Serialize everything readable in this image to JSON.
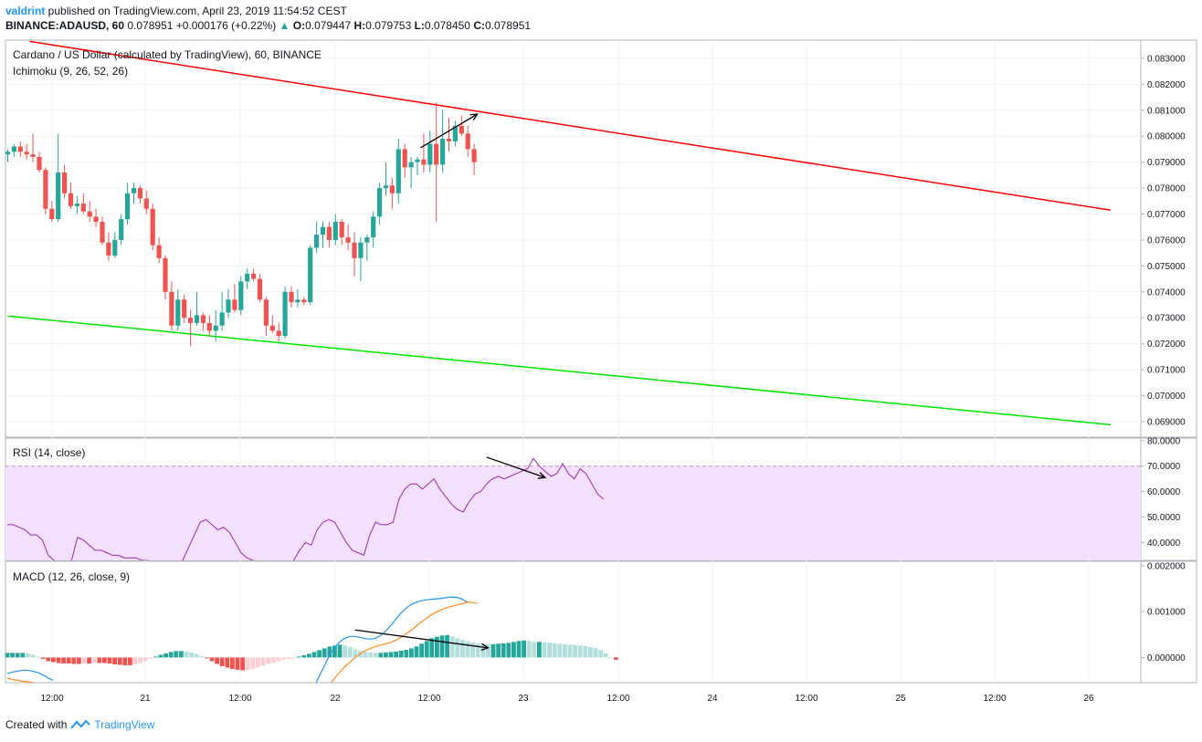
{
  "header": {
    "author": "valdrint",
    "published_text": " published on TradingView.com, April 23, 2019 11:54:52 CEST",
    "symbol_interval": "BINANCE:ADAUSD, 60",
    "last": "0.078951",
    "change": "+0.000176 (+0.22%)",
    "o_label": "O:",
    "o_value": "0.079447",
    "h_label": "H:",
    "h_value": "0.079753",
    "l_label": "L:",
    "l_value": "0.078450",
    "c_label": "C:",
    "c_value": "0.078951"
  },
  "legend": {
    "main": "Cardano / US Dollar (calculated by TradingView), 60, BINANCE",
    "ichimoku": "Ichimoku (9, 26, 52, 26)",
    "rsi": "RSI (14, close)",
    "macd": "MACD (12, 26, close, 9)"
  },
  "footer": {
    "created_with": "Created with",
    "brand": "TradingView"
  },
  "colors": {
    "up": "#26a69a",
    "down": "#ef5350",
    "resistance": "#ff0000",
    "support": "#00e600",
    "rsi_line": "#9c27b0",
    "rsi_band": "#f3e0fc",
    "macd_line": "#2196f3",
    "signal_line": "#ff8c1a",
    "hist_up_strong": "#26a69a",
    "hist_up_weak": "#b2dfdb",
    "hist_down_strong": "#ef5350",
    "hist_down_weak": "#ffcdd2"
  },
  "chart_data": [
    {
      "type": "candlestick",
      "title": "Cardano / US Dollar (calculated by TradingView), 60, BINANCE",
      "ylim": [
        0.0684,
        0.0837
      ],
      "y_ticks": [
        "0.083000",
        "0.082000",
        "0.081000",
        "0.080000",
        "0.079000",
        "0.078000",
        "0.077000",
        "0.076000",
        "0.075000",
        "0.074000",
        "0.073000",
        "0.072000",
        "0.071000",
        "0.070000",
        "0.069000"
      ],
      "x_ticks": [
        "12:00",
        "21",
        "12:00",
        "22",
        "12:00",
        "23",
        "12:00",
        "24",
        "12:00",
        "25",
        "12:00",
        "26"
      ],
      "candles": [
        {
          "o": 0.0793,
          "h": 0.0795,
          "l": 0.079,
          "c": 0.0794
        },
        {
          "o": 0.0794,
          "h": 0.0797,
          "l": 0.0792,
          "c": 0.0796
        },
        {
          "o": 0.0796,
          "h": 0.0798,
          "l": 0.0792,
          "c": 0.0794
        },
        {
          "o": 0.0794,
          "h": 0.0797,
          "l": 0.0791,
          "c": 0.0793
        },
        {
          "o": 0.0793,
          "h": 0.0801,
          "l": 0.079,
          "c": 0.0792
        },
        {
          "o": 0.0792,
          "h": 0.0794,
          "l": 0.0786,
          "c": 0.0787
        },
        {
          "o": 0.0787,
          "h": 0.0788,
          "l": 0.077,
          "c": 0.0772
        },
        {
          "o": 0.0772,
          "h": 0.0775,
          "l": 0.0767,
          "c": 0.0768
        },
        {
          "o": 0.0768,
          "h": 0.0801,
          "l": 0.0767,
          "c": 0.0786
        },
        {
          "o": 0.0786,
          "h": 0.0789,
          "l": 0.0776,
          "c": 0.0778
        },
        {
          "o": 0.0778,
          "h": 0.0782,
          "l": 0.0772,
          "c": 0.0773
        },
        {
          "o": 0.0773,
          "h": 0.0777,
          "l": 0.077,
          "c": 0.0774
        },
        {
          "o": 0.0774,
          "h": 0.0778,
          "l": 0.077,
          "c": 0.0771
        },
        {
          "o": 0.0771,
          "h": 0.0775,
          "l": 0.0767,
          "c": 0.0769
        },
        {
          "o": 0.0769,
          "h": 0.0772,
          "l": 0.0765,
          "c": 0.0767
        },
        {
          "o": 0.0767,
          "h": 0.0769,
          "l": 0.0758,
          "c": 0.0759
        },
        {
          "o": 0.0759,
          "h": 0.0763,
          "l": 0.0752,
          "c": 0.0754
        },
        {
          "o": 0.0754,
          "h": 0.0763,
          "l": 0.0753,
          "c": 0.076
        },
        {
          "o": 0.076,
          "h": 0.077,
          "l": 0.0758,
          "c": 0.0768
        },
        {
          "o": 0.0768,
          "h": 0.0782,
          "l": 0.0766,
          "c": 0.0778
        },
        {
          "o": 0.0778,
          "h": 0.0782,
          "l": 0.0774,
          "c": 0.078
        },
        {
          "o": 0.078,
          "h": 0.0781,
          "l": 0.0774,
          "c": 0.0776
        },
        {
          "o": 0.0776,
          "h": 0.0779,
          "l": 0.077,
          "c": 0.0772
        },
        {
          "o": 0.0772,
          "h": 0.0774,
          "l": 0.0756,
          "c": 0.0758
        },
        {
          "o": 0.0758,
          "h": 0.0761,
          "l": 0.0751,
          "c": 0.0753
        },
        {
          "o": 0.0753,
          "h": 0.0754,
          "l": 0.0737,
          "c": 0.074
        },
        {
          "o": 0.074,
          "h": 0.0744,
          "l": 0.0725,
          "c": 0.0727
        },
        {
          "o": 0.0727,
          "h": 0.0741,
          "l": 0.0725,
          "c": 0.0737
        },
        {
          "o": 0.0737,
          "h": 0.0739,
          "l": 0.0728,
          "c": 0.073
        },
        {
          "o": 0.073,
          "h": 0.0733,
          "l": 0.0719,
          "c": 0.0728
        },
        {
          "o": 0.0728,
          "h": 0.074,
          "l": 0.0727,
          "c": 0.0731
        },
        {
          "o": 0.0731,
          "h": 0.0732,
          "l": 0.0725,
          "c": 0.0728
        },
        {
          "o": 0.0728,
          "h": 0.0731,
          "l": 0.0723,
          "c": 0.0725
        },
        {
          "o": 0.0725,
          "h": 0.0733,
          "l": 0.0721,
          "c": 0.0727
        },
        {
          "o": 0.0727,
          "h": 0.074,
          "l": 0.0725,
          "c": 0.0732
        },
        {
          "o": 0.0732,
          "h": 0.0741,
          "l": 0.073,
          "c": 0.0737
        },
        {
          "o": 0.0737,
          "h": 0.0743,
          "l": 0.0732,
          "c": 0.0733
        },
        {
          "o": 0.0733,
          "h": 0.0746,
          "l": 0.0731,
          "c": 0.0744
        },
        {
          "o": 0.0744,
          "h": 0.0749,
          "l": 0.0741,
          "c": 0.0747
        },
        {
          "o": 0.0747,
          "h": 0.0749,
          "l": 0.0744,
          "c": 0.0745
        },
        {
          "o": 0.0745,
          "h": 0.0747,
          "l": 0.0736,
          "c": 0.0737
        },
        {
          "o": 0.0737,
          "h": 0.0738,
          "l": 0.0723,
          "c": 0.0727
        },
        {
          "o": 0.0727,
          "h": 0.0731,
          "l": 0.0724,
          "c": 0.0725
        },
        {
          "o": 0.0725,
          "h": 0.0728,
          "l": 0.0721,
          "c": 0.0723
        },
        {
          "o": 0.0723,
          "h": 0.0742,
          "l": 0.0722,
          "c": 0.074
        },
        {
          "o": 0.074,
          "h": 0.0742,
          "l": 0.0734,
          "c": 0.0736
        },
        {
          "o": 0.0736,
          "h": 0.0741,
          "l": 0.0734,
          "c": 0.0737
        },
        {
          "o": 0.0737,
          "h": 0.0738,
          "l": 0.0735,
          "c": 0.0736
        },
        {
          "o": 0.0736,
          "h": 0.0758,
          "l": 0.0735,
          "c": 0.0757
        },
        {
          "o": 0.0757,
          "h": 0.0767,
          "l": 0.0755,
          "c": 0.0762
        },
        {
          "o": 0.0762,
          "h": 0.0767,
          "l": 0.0757,
          "c": 0.0765
        },
        {
          "o": 0.0765,
          "h": 0.0767,
          "l": 0.0757,
          "c": 0.076
        },
        {
          "o": 0.076,
          "h": 0.077,
          "l": 0.0758,
          "c": 0.0767
        },
        {
          "o": 0.0767,
          "h": 0.0768,
          "l": 0.0758,
          "c": 0.0761
        },
        {
          "o": 0.0761,
          "h": 0.0766,
          "l": 0.0756,
          "c": 0.0759
        },
        {
          "o": 0.0759,
          "h": 0.0763,
          "l": 0.0746,
          "c": 0.0753
        },
        {
          "o": 0.0753,
          "h": 0.0761,
          "l": 0.0744,
          "c": 0.0759
        },
        {
          "o": 0.0759,
          "h": 0.0762,
          "l": 0.0752,
          "c": 0.0761
        },
        {
          "o": 0.0761,
          "h": 0.0771,
          "l": 0.0757,
          "c": 0.0769
        },
        {
          "o": 0.0769,
          "h": 0.0782,
          "l": 0.0766,
          "c": 0.078
        },
        {
          "o": 0.078,
          "h": 0.079,
          "l": 0.0777,
          "c": 0.0781
        },
        {
          "o": 0.0781,
          "h": 0.0784,
          "l": 0.0772,
          "c": 0.0778
        },
        {
          "o": 0.0778,
          "h": 0.0799,
          "l": 0.0774,
          "c": 0.0795
        },
        {
          "o": 0.0795,
          "h": 0.0797,
          "l": 0.0784,
          "c": 0.0788
        },
        {
          "o": 0.0788,
          "h": 0.0792,
          "l": 0.078,
          "c": 0.079
        },
        {
          "o": 0.079,
          "h": 0.0792,
          "l": 0.0785,
          "c": 0.0791
        },
        {
          "o": 0.0791,
          "h": 0.0801,
          "l": 0.0786,
          "c": 0.0789
        },
        {
          "o": 0.0789,
          "h": 0.0802,
          "l": 0.0786,
          "c": 0.0797
        },
        {
          "o": 0.0797,
          "h": 0.0813,
          "l": 0.0767,
          "c": 0.0789
        },
        {
          "o": 0.0789,
          "h": 0.081,
          "l": 0.0786,
          "c": 0.0799
        },
        {
          "o": 0.0799,
          "h": 0.0807,
          "l": 0.0794,
          "c": 0.0798
        },
        {
          "o": 0.0798,
          "h": 0.0806,
          "l": 0.0796,
          "c": 0.0804
        },
        {
          "o": 0.0804,
          "h": 0.0808,
          "l": 0.08,
          "c": 0.0801
        },
        {
          "o": 0.0801,
          "h": 0.0804,
          "l": 0.0792,
          "c": 0.0795
        },
        {
          "o": 0.0795,
          "h": 0.0797,
          "l": 0.0785,
          "c": 0.079
        }
      ],
      "trendlines": [
        {
          "name": "resistance",
          "from": {
            "bar": 3.5,
            "price": 0.08365
          },
          "to": {
            "bar": 175,
            "price": 0.07715
          }
        },
        {
          "name": "support",
          "from": {
            "bar": 0,
            "price": 0.07307
          },
          "to": {
            "bar": 175,
            "price": 0.06888
          }
        }
      ],
      "arrows": [
        {
          "from": {
            "bar": 65.5,
            "price": 0.07955
          },
          "to": {
            "bar": 74.5,
            "price": 0.08085
          }
        }
      ]
    },
    {
      "type": "line",
      "title": "RSI (14, close)",
      "ylim": [
        33,
        81
      ],
      "y_ticks": [
        "80.0000",
        "70.0000",
        "60.0000",
        "50.0000",
        "40.0000"
      ],
      "band": [
        30,
        70
      ],
      "values": [
        47,
        47,
        46,
        45,
        43,
        43,
        41,
        35,
        33,
        32,
        31,
        33,
        42,
        41,
        39,
        37,
        37,
        36,
        35,
        35,
        34,
        34,
        34,
        33,
        33,
        32,
        32,
        30,
        29,
        30,
        33,
        38,
        43,
        48,
        49,
        47,
        45,
        46,
        44,
        40,
        36,
        34,
        33,
        32,
        32,
        31,
        31,
        30,
        31,
        33,
        37,
        40,
        39,
        45,
        48,
        49,
        48,
        44,
        40,
        37,
        36,
        35,
        43,
        48,
        47,
        47,
        48,
        57,
        61,
        63,
        63,
        61,
        63,
        65,
        61,
        58,
        55,
        53,
        52,
        56,
        59,
        60,
        63,
        65,
        66,
        65,
        66,
        67,
        68,
        69,
        73,
        70,
        68,
        66,
        67,
        71,
        67,
        65,
        69,
        67,
        63,
        59,
        57
      ],
      "arrows": [
        {
          "from": {
            "idx": 82,
            "val": 73.5
          },
          "to": {
            "idx": 92,
            "val": 65.5
          }
        }
      ]
    },
    {
      "type": "bar+line",
      "title": "MACD (12, 26, close, 9)",
      "ylim": [
        -0.00055,
        0.0021
      ],
      "y_ticks": [
        "0.002000",
        "0.001000",
        "0.000000"
      ],
      "histogram": [
        0.0001,
        0.0001,
        0.0001,
        0.0001,
        9e-05,
        6e-05,
        2e-05,
        -3e-05,
        -8e-05,
        -0.0001,
        -0.00012,
        -0.00013,
        -0.00013,
        -0.00014,
        -0.00014,
        -0.00013,
        -0.00013,
        -0.00012,
        -0.00012,
        -0.00012,
        -0.00013,
        -0.00015,
        -0.00016,
        -0.00017,
        -0.00017,
        -0.00015,
        -0.00012,
        -8e-05,
        -3e-05,
        2e-05,
        6e-05,
        9e-05,
        0.00012,
        0.00014,
        0.00014,
        0.00013,
        0.00011,
        8e-05,
        3e-05,
        -2e-05,
        -8e-05,
        -0.00014,
        -0.00019,
        -0.00022,
        -0.00025,
        -0.00027,
        -0.00028,
        -0.00027,
        -0.00025,
        -0.00022,
        -0.00018,
        -0.00014,
        -0.00011,
        -8e-05,
        -5e-05,
        -3e-05,
        -1e-05,
        2e-05,
        5e-05,
        8e-05,
        0.00012,
        0.00016,
        0.0002,
        0.00024,
        0.00026,
        0.00028,
        0.00027,
        0.00023,
        0.00018,
        0.00014,
        0.00012,
        0.00011,
        0.0001,
        0.0001,
        0.00011,
        0.00012,
        0.00013,
        0.00015,
        0.00017,
        0.0002,
        0.00024,
        0.0003,
        0.00036,
        0.00042,
        0.00045,
        0.00048,
        0.00049,
        0.00046,
        0.00042,
        0.00039,
        0.00036,
        0.00033,
        0.00031,
        0.0003,
        0.00029,
        0.00029,
        0.0003,
        0.00031,
        0.00032,
        0.00034,
        0.00036,
        0.00037,
        0.00036,
        0.00034,
        0.00034,
        0.00033,
        0.00032,
        0.00031,
        0.0003,
        0.00029,
        0.00028,
        0.00027,
        0.00026,
        0.00025,
        0.00023,
        0.00021,
        0.00016,
        9e-05,
        0.0,
        -5e-05
      ],
      "macd_line": {
        "start": 0,
        "values": [
          -0.00035,
          -0.00032,
          -0.0003,
          -0.00028,
          -0.00028,
          -0.0003,
          -0.00033,
          -0.00038,
          -0.00045,
          -0.0005
        ]
      },
      "macd_line2": {
        "start": 60,
        "values": [
          -0.00065,
          -0.0004,
          -0.00018,
          5e-05,
          0.00022,
          0.00034,
          0.00042,
          0.00046,
          0.00046,
          0.00044,
          0.00041,
          0.0004,
          0.00042,
          0.00048,
          0.00058,
          0.0007,
          0.00084,
          0.00097,
          0.00108,
          0.00116,
          0.00121,
          0.00124,
          0.00126,
          0.00127,
          0.00128,
          0.00129,
          0.00131,
          0.00132,
          0.00131,
          0.00127,
          0.0012
        ]
      },
      "signal_line": {
        "start": 0,
        "values": [
          -0.00045,
          -0.00048,
          -0.0005,
          -0.00052,
          -0.00053,
          -0.00055
        ]
      },
      "signal_line2": {
        "start": 63,
        "values": [
          -0.0006,
          -0.00045,
          -0.00032,
          -0.0002,
          -0.0001,
          0.0,
          8e-05,
          0.00015,
          0.0002,
          0.00024,
          0.00027,
          0.0003,
          0.00033,
          0.00038,
          0.00044,
          0.00052,
          0.0006,
          0.00069,
          0.00078,
          0.00086,
          0.00094,
          0.001,
          0.00105,
          0.00109,
          0.00112,
          0.00115,
          0.00118,
          0.00121,
          0.0012,
          0.00118
        ]
      },
      "arrows": [
        {
          "from": {
            "idx": 68,
            "val": 0.0006
          },
          "to": {
            "idx": 94,
            "val": 0.00021
          }
        }
      ]
    }
  ]
}
